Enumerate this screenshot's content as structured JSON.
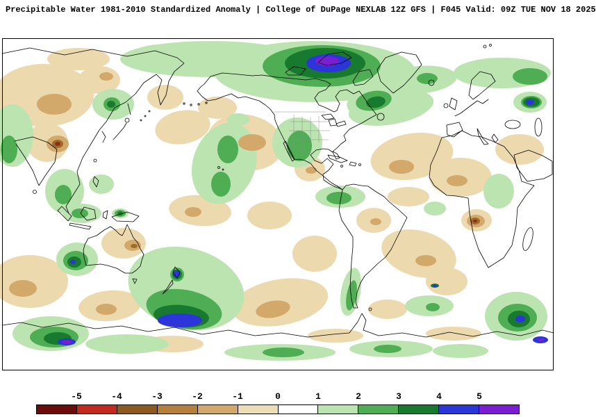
{
  "header": {
    "title": "Precipitable Water 1981-2010 Standardized Anomaly | College of DuPage NEXLAB  12Z GFS | F045 Valid: 09Z TUE NOV 18 2025"
  },
  "legend": {
    "tick_labels": [
      "-5",
      "-4",
      "-3",
      "-2",
      "-1",
      "0",
      "1",
      "2",
      "3",
      "4",
      "5"
    ],
    "segment_colors": [
      "#6b0b0b",
      "#c02a1f",
      "#8c5a21",
      "#b5803c",
      "#d2a96a",
      "#ecddb9",
      "#ffffff",
      "#bce4b0",
      "#4fae54",
      "#187a2e",
      "#2b35d8",
      "#7a1ed2"
    ]
  },
  "map": {
    "background": "#ffffff",
    "coast_color": "#000000",
    "level_colors": {
      "n4": "#8c2f0e",
      "n3": "#a06b2a",
      "n2": "#d2a96a",
      "n1": "#ecd9ae",
      "p1": "#bce4b0",
      "p2": "#4fae54",
      "p3": "#187a2e",
      "p4": "#2b35d8",
      "p5": "#7a1ed2"
    },
    "blobs": [
      [
        "n1",
        60,
        82,
        72,
        45,
        0
      ],
      [
        "n1",
        110,
        30,
        45,
        16,
        0
      ],
      [
        "n1",
        225,
        25,
        35,
        16,
        0
      ],
      [
        "n1",
        65,
        150,
        30,
        28,
        0
      ],
      [
        "n1",
        140,
        60,
        30,
        20,
        0
      ],
      [
        "n1",
        235,
        85,
        26,
        18,
        0
      ],
      [
        "n1",
        310,
        100,
        28,
        16,
        0
      ],
      [
        "n1",
        350,
        150,
        55,
        40,
        10
      ],
      [
        "n1",
        260,
        128,
        40,
        24,
        -10
      ],
      [
        "n1",
        443,
        188,
        22,
        18,
        0
      ],
      [
        "n1",
        385,
        255,
        32,
        20,
        0
      ],
      [
        "n1",
        285,
        248,
        45,
        22,
        5
      ],
      [
        "n1",
        590,
        170,
        60,
        33,
        -10
      ],
      [
        "n1",
        745,
        160,
        35,
        22,
        0
      ],
      [
        "n1",
        660,
        200,
        45,
        28,
        0
      ],
      [
        "n1",
        683,
        262,
        22,
        16,
        0
      ],
      [
        "n1",
        585,
        228,
        30,
        14,
        0
      ],
      [
        "n1",
        535,
        262,
        25,
        18,
        0
      ],
      [
        "n1",
        600,
        310,
        55,
        33,
        15
      ],
      [
        "n1",
        640,
        350,
        30,
        20,
        0
      ],
      [
        "n1",
        555,
        390,
        28,
        14,
        0
      ],
      [
        "n1",
        40,
        350,
        55,
        38,
        0
      ],
      [
        "n1",
        155,
        385,
        45,
        22,
        -5
      ],
      [
        "n1",
        175,
        295,
        32,
        22,
        0
      ],
      [
        "n1",
        400,
        380,
        70,
        33,
        -10
      ],
      [
        "n1",
        450,
        310,
        32,
        26,
        0
      ],
      [
        "n1",
        245,
        440,
        45,
        12,
        0
      ],
      [
        "n1",
        480,
        428,
        40,
        10,
        0
      ],
      [
        "n1",
        650,
        425,
        40,
        10,
        0
      ],
      [
        "p1",
        300,
        30,
        130,
        26,
        0
      ],
      [
        "p1",
        450,
        48,
        145,
        44,
        0
      ],
      [
        "p1",
        560,
        100,
        62,
        24,
        -10
      ],
      [
        "p1",
        530,
        92,
        34,
        20,
        -10
      ],
      [
        "p1",
        600,
        60,
        55,
        20,
        -5
      ],
      [
        "p1",
        720,
        50,
        70,
        22,
        0
      ],
      [
        "p1",
        760,
        92,
        24,
        15,
        0
      ],
      [
        "p1",
        425,
        150,
        36,
        36,
        0
      ],
      [
        "p1",
        340,
        117,
        16,
        9,
        0
      ],
      [
        "p1",
        320,
        180,
        45,
        60,
        20
      ],
      [
        "p1",
        487,
        228,
        36,
        16,
        0
      ],
      [
        "p1",
        160,
        95,
        30,
        22,
        0
      ],
      [
        "p1",
        90,
        220,
        28,
        32,
        0
      ],
      [
        "p1",
        143,
        210,
        18,
        14,
        0
      ],
      [
        "p1",
        15,
        140,
        30,
        45,
        0
      ],
      [
        "p1",
        715,
        220,
        22,
        25,
        0
      ],
      [
        "p1",
        623,
        245,
        16,
        10,
        0
      ],
      [
        "p1",
        115,
        252,
        28,
        14,
        0
      ],
      [
        "p1",
        170,
        252,
        12,
        7,
        0
      ],
      [
        "p1",
        265,
        360,
        85,
        58,
        15
      ],
      [
        "p1",
        252,
        340,
        16,
        16,
        0
      ],
      [
        "p1",
        108,
        318,
        30,
        24,
        0
      ],
      [
        "p1",
        70,
        425,
        55,
        25,
        0
      ],
      [
        "p1",
        740,
        400,
        45,
        35,
        0
      ],
      [
        "p1",
        180,
        440,
        60,
        14,
        0
      ],
      [
        "p1",
        400,
        452,
        80,
        12,
        0
      ],
      [
        "p1",
        560,
        447,
        60,
        12,
        0
      ],
      [
        "p1",
        660,
        450,
        40,
        10,
        0
      ],
      [
        "p1",
        502,
        365,
        14,
        35,
        10
      ],
      [
        "p1",
        615,
        385,
        35,
        15,
        0
      ],
      [
        "n2",
        75,
        95,
        25,
        15,
        0
      ],
      [
        "n2",
        80,
        152,
        16,
        12,
        0
      ],
      [
        "n2",
        150,
        55,
        10,
        6,
        0
      ],
      [
        "n2",
        360,
        150,
        20,
        12,
        0
      ],
      [
        "n2",
        575,
        185,
        18,
        10,
        0
      ],
      [
        "n2",
        655,
        205,
        15,
        8,
        0
      ],
      [
        "n2",
        682,
        263,
        13,
        9,
        0
      ],
      [
        "n2",
        538,
        264,
        8,
        5,
        0
      ],
      [
        "n2",
        610,
        320,
        15,
        8,
        0
      ],
      [
        "n2",
        30,
        360,
        20,
        12,
        0
      ],
      [
        "n2",
        150,
        390,
        15,
        8,
        0
      ],
      [
        "n2",
        188,
        298,
        12,
        8,
        0
      ],
      [
        "n2",
        275,
        250,
        12,
        7,
        0
      ],
      [
        "n2",
        390,
        390,
        25,
        12,
        -10
      ],
      [
        "n2",
        445,
        190,
        8,
        5,
        0
      ],
      [
        "p2",
        460,
        40,
        85,
        30,
        0
      ],
      [
        "p2",
        535,
        90,
        26,
        14,
        -10
      ],
      [
        "p2",
        428,
        155,
        18,
        22,
        0
      ],
      [
        "p2",
        325,
        160,
        15,
        20,
        0
      ],
      [
        "p2",
        315,
        210,
        14,
        18,
        0
      ],
      [
        "p2",
        485,
        230,
        18,
        9,
        0
      ],
      [
        "p2",
        158,
        95,
        12,
        10,
        0
      ],
      [
        "p2",
        88,
        225,
        12,
        14,
        0
      ],
      [
        "p2",
        10,
        160,
        12,
        20,
        0
      ],
      [
        "p2",
        612,
        58,
        15,
        8,
        0
      ],
      [
        "p2",
        762,
        92,
        15,
        9,
        0
      ],
      [
        "p2",
        760,
        55,
        25,
        12,
        0
      ],
      [
        "p2",
        262,
        390,
        55,
        28,
        10
      ],
      [
        "p2",
        106,
        320,
        18,
        14,
        0
      ],
      [
        "p2",
        75,
        430,
        35,
        15,
        0
      ],
      [
        "p2",
        742,
        402,
        28,
        20,
        0
      ],
      [
        "p2",
        252,
        340,
        10,
        10,
        0
      ],
      [
        "p2",
        503,
        370,
        7,
        22,
        10
      ],
      [
        "p2",
        405,
        452,
        30,
        7,
        0
      ],
      [
        "p2",
        555,
        447,
        20,
        6,
        0
      ],
      [
        "p2",
        112,
        252,
        12,
        7,
        0
      ],
      [
        "p2",
        170,
        252,
        8,
        5,
        0
      ],
      [
        "p2",
        620,
        387,
        10,
        6,
        0
      ],
      [
        "n3",
        80,
        152,
        8,
        6,
        0
      ],
      [
        "n3",
        681,
        263,
        7,
        5,
        0
      ],
      [
        "n3",
        190,
        299,
        5,
        3,
        0
      ],
      [
        "p3",
        465,
        36,
        58,
        22,
        0
      ],
      [
        "p3",
        538,
        92,
        14,
        8,
        -10
      ],
      [
        "p3",
        258,
        400,
        40,
        16,
        5
      ],
      [
        "p3",
        104,
        322,
        10,
        8,
        0
      ],
      [
        "p3",
        80,
        432,
        20,
        9,
        0
      ],
      [
        "p3",
        744,
        404,
        16,
        12,
        0
      ],
      [
        "p3",
        252,
        340,
        7,
        7,
        0
      ],
      [
        "p3",
        157,
        95,
        6,
        5,
        0
      ],
      [
        "p3",
        762,
        92,
        12,
        7,
        0
      ],
      [
        "p3",
        623,
        356,
        6,
        3,
        0
      ],
      [
        "p3",
        170,
        252,
        4,
        3,
        0
      ],
      [
        "n4",
        80,
        152,
        4,
        3,
        0
      ],
      [
        "n4",
        681,
        263,
        3,
        2,
        0
      ],
      [
        "p4",
        470,
        36,
        32,
        13,
        0
      ],
      [
        "p4",
        256,
        406,
        32,
        10,
        0
      ],
      [
        "p4",
        251,
        339,
        5,
        5,
        0
      ],
      [
        "p4",
        102,
        322,
        4,
        3,
        0
      ],
      [
        "p4",
        93,
        437,
        13,
        5,
        0
      ],
      [
        "p4",
        746,
        404,
        7,
        5,
        0
      ],
      [
        "p4",
        760,
        92,
        6,
        4,
        0
      ],
      [
        "p4",
        775,
        434,
        11,
        5,
        0
      ],
      [
        "p4",
        623,
        356,
        3,
        2,
        0
      ],
      [
        "p5",
        468,
        33,
        17,
        7,
        0
      ],
      [
        "p5",
        93,
        437,
        7,
        3,
        0
      ],
      [
        "p5",
        776,
        434,
        5,
        2,
        0
      ]
    ]
  }
}
